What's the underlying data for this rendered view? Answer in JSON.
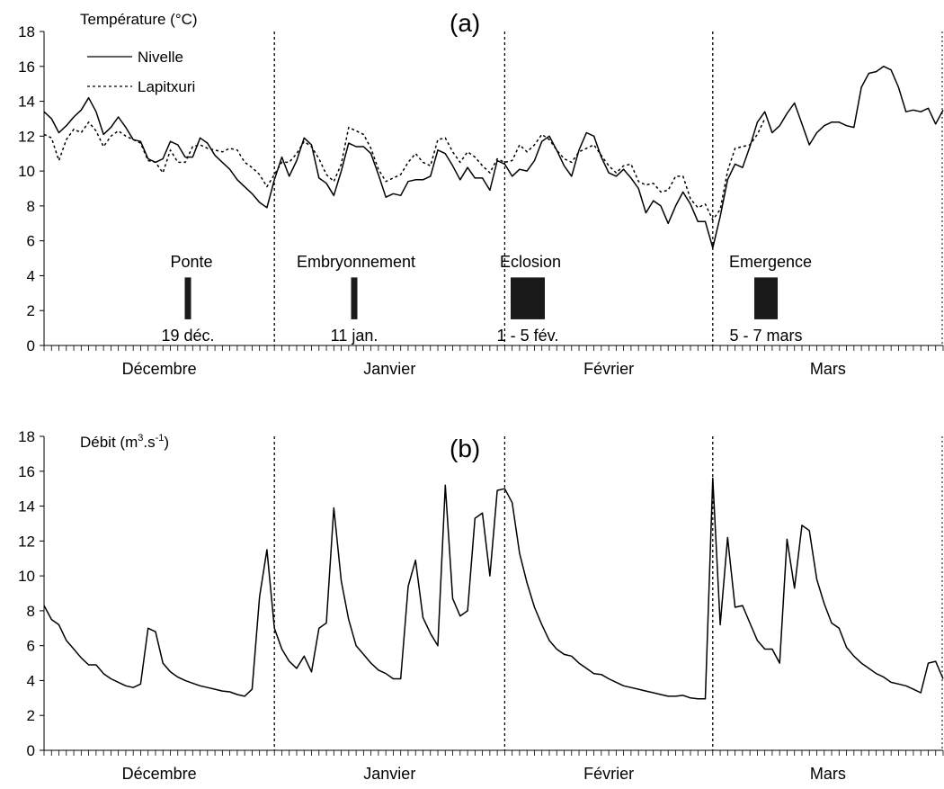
{
  "chart_data": [
    {
      "type": "line",
      "panel_label": "(a)",
      "ylabel": "Température (°C)",
      "ylim": [
        0,
        18
      ],
      "yticks": [
        "0",
        "2",
        "4",
        "6",
        "8",
        "10",
        "12",
        "14",
        "16",
        "18"
      ],
      "months": [
        "Décembre",
        "Janvier",
        "Février",
        "Mars"
      ],
      "legend_position": "top-left",
      "series": [
        {
          "name": "Nivelle",
          "style": "solid",
          "values": [
            13.4,
            13.0,
            12.2,
            12.6,
            13.1,
            13.5,
            14.2,
            13.4,
            12.1,
            12.5,
            13.1,
            12.5,
            11.8,
            11.7,
            10.7,
            10.5,
            10.7,
            11.7,
            11.5,
            10.8,
            10.8,
            11.9,
            11.6,
            10.9,
            10.5,
            10.1,
            9.5,
            9.1,
            8.7,
            8.2,
            7.9,
            9.5,
            10.8,
            9.7,
            10.6,
            11.9,
            11.5,
            9.6,
            9.3,
            8.6,
            10.0,
            11.6,
            11.4,
            11.4,
            11.0,
            9.8,
            8.5,
            8.7,
            8.6,
            9.4,
            9.5,
            9.5,
            9.7,
            11.2,
            11.0,
            10.3,
            9.5,
            10.2,
            9.6,
            9.6,
            8.9,
            10.6,
            10.4,
            9.7,
            10.1,
            10.0,
            10.6,
            11.7,
            12.0,
            11.2,
            10.3,
            9.7,
            11.2,
            12.2,
            12.0,
            10.8,
            9.9,
            9.7,
            10.1,
            9.6,
            9.0,
            7.6,
            8.3,
            8.0,
            7.0,
            8.0,
            8.8,
            8.1,
            7.1,
            7.1,
            5.6,
            7.4,
            9.5,
            10.4,
            10.2,
            11.4,
            12.8,
            13.4,
            12.2,
            12.6,
            13.3,
            13.9,
            12.7,
            11.5,
            12.2,
            12.6,
            12.8,
            12.8,
            12.6,
            12.5,
            14.8,
            15.6,
            15.7,
            16.0,
            15.8,
            14.8,
            13.4,
            13.5,
            13.4,
            13.6,
            12.7,
            13.5
          ]
        },
        {
          "name": "Lapitxuri",
          "style": "dotted",
          "values": [
            12.1,
            11.9,
            10.6,
            11.8,
            12.4,
            12.2,
            12.8,
            12.3,
            11.4,
            12.0,
            12.3,
            12.0,
            11.8,
            11.6,
            10.6,
            10.5,
            9.9,
            11.2,
            10.5,
            10.5,
            11.4,
            11.5,
            11.3,
            11.2,
            11.1,
            11.3,
            11.2,
            10.5,
            10.2,
            9.8,
            9.1,
            9.8,
            10.5,
            10.5,
            11.0,
            11.7,
            11.4,
            10.7,
            9.8,
            9.4,
            10.4,
            12.5,
            12.3,
            12.1,
            11.3,
            10.1,
            9.4,
            9.6,
            9.8,
            10.5,
            11.0,
            10.5,
            10.3,
            11.8,
            11.9,
            11.1,
            10.5,
            11.1,
            10.8,
            10.3,
            9.9,
            10.7,
            10.5,
            10.6,
            11.5,
            11.1,
            11.5,
            12.1,
            11.8,
            11.2,
            10.7,
            10.5,
            11.1,
            11.3,
            11.5,
            10.9,
            10.3,
            9.9,
            10.3,
            10.4,
            9.4,
            9.2,
            9.3,
            8.8,
            8.9,
            9.7,
            9.7,
            8.4,
            7.9,
            8.1,
            7.2,
            7.8,
            10.0,
            11.3,
            11.4,
            11.5,
            12.1,
            13.0
          ]
        }
      ],
      "events": [
        {
          "label": "Ponte",
          "date": "19 déc."
        },
        {
          "label": "Embryonnement",
          "date": "11 jan."
        },
        {
          "label": "Eclosion",
          "date": "1 - 5 fév."
        },
        {
          "label": "Emergence",
          "date": "5 - 7 mars"
        }
      ]
    },
    {
      "type": "line",
      "panel_label": "(b)",
      "ylabel_main": "Débit (m",
      "ylabel_sup1": "3",
      "ylabel_mid": ".s",
      "ylabel_sup2": "-1",
      "ylabel_end": ")",
      "ylim": [
        0,
        18
      ],
      "yticks": [
        "0",
        "2",
        "4",
        "6",
        "8",
        "10",
        "12",
        "14",
        "16",
        "18"
      ],
      "months": [
        "Décembre",
        "Janvier",
        "Février",
        "Mars"
      ],
      "series": [
        {
          "name": "",
          "style": "solid",
          "values": [
            8.3,
            7.5,
            7.2,
            6.3,
            5.8,
            5.3,
            4.9,
            4.9,
            4.4,
            4.1,
            3.9,
            3.7,
            3.6,
            3.8,
            7.0,
            6.8,
            5.0,
            4.5,
            4.2,
            4.0,
            3.85,
            3.7,
            3.6,
            3.5,
            3.4,
            3.35,
            3.2,
            3.1,
            3.5,
            8.8,
            11.5,
            7.0,
            5.8,
            5.1,
            4.7,
            5.4,
            4.5,
            7.0,
            7.3,
            13.9,
            9.7,
            7.5,
            6.0,
            5.5,
            5.0,
            4.6,
            4.4,
            4.1,
            4.1,
            9.4,
            10.9,
            7.6,
            6.7,
            6.0,
            15.2,
            8.7,
            7.7,
            8.0,
            13.3,
            13.6,
            10.0,
            14.9,
            15.0,
            14.2,
            11.3,
            9.6,
            8.2,
            7.2,
            6.3,
            5.8,
            5.5,
            5.4,
            5.0,
            4.7,
            4.4,
            4.35,
            4.1,
            3.9,
            3.7,
            3.6,
            3.5,
            3.4,
            3.3,
            3.2,
            3.1,
            3.1,
            3.15,
            3.0,
            2.95,
            2.95,
            15.6,
            7.2,
            12.2,
            8.2,
            8.3,
            7.3,
            6.3,
            5.8,
            5.8,
            5.0,
            12.1,
            9.3,
            12.9,
            12.6,
            9.8,
            8.4,
            7.3,
            7.0,
            5.9,
            5.4,
            5.0,
            4.7,
            4.4,
            4.2,
            3.9,
            3.8,
            3.7,
            3.5,
            3.3,
            5.0,
            5.1,
            4.1
          ]
        }
      ]
    }
  ]
}
